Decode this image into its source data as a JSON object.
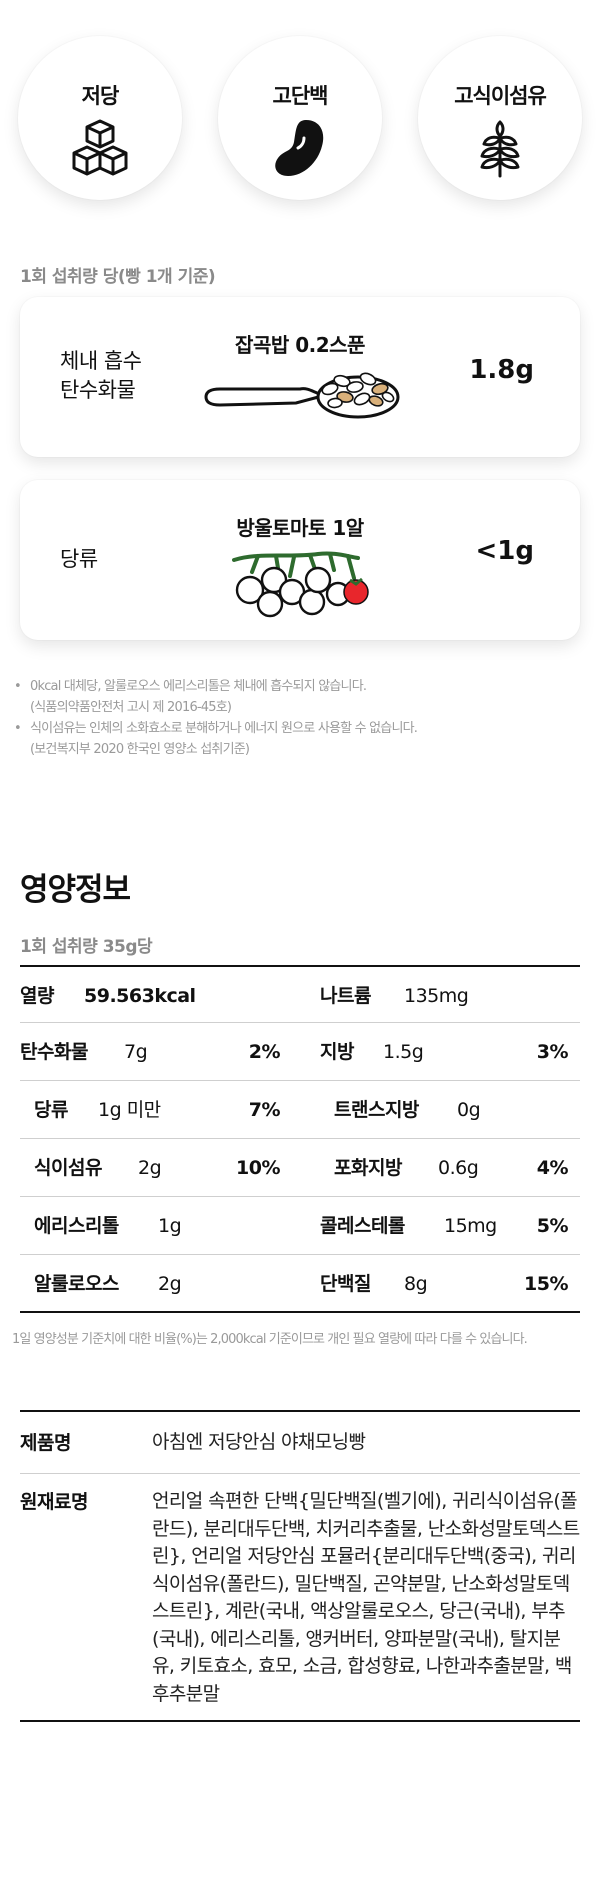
{
  "badges": [
    {
      "label": "저당",
      "icon": "sugar-cubes-icon"
    },
    {
      "label": "고단백",
      "icon": "bean-icon"
    },
    {
      "label": "고식이섬유",
      "icon": "wheat-icon"
    }
  ],
  "intake": {
    "caption": "1회 섭취량 당(빵 1개 기준)",
    "cards": [
      {
        "label_line1": "체내 흡수",
        "label_line2": "탄수화물",
        "title": "잡곡밥 0.2스푼",
        "value": "1.8g",
        "illustration": "spoon-icon"
      },
      {
        "label_line1": "당류",
        "title": "방울토마토 1알",
        "value": "<1g",
        "illustration": "tomato-icon"
      }
    ]
  },
  "notes": [
    {
      "line1": "0kcal 대체당, 알룰로오스 에리스리톨은 체내에 흡수되지 않습니다.",
      "line2": "(식품의약품안전처 고시 제 2016-45호)"
    },
    {
      "line1": "식이섬유는 인체의 소화효소로 분해하거나 에너지 원으로 사용할 수 없습니다.",
      "line2": "(보건복지부 2020 한국인 영양소 섭취기준)"
    }
  ],
  "nutrition": {
    "title": "영양정보",
    "serving": "1회 섭취량 35g당",
    "energy": {
      "label": "열량",
      "value": "59.563kcal"
    },
    "sodium": {
      "label": "나트륨",
      "value": "135mg"
    },
    "carbs": {
      "label": "탄수화물",
      "value": "7g",
      "pct": "2%"
    },
    "fat": {
      "label": "지방",
      "value": "1.5g",
      "pct": "3%"
    },
    "sugar": {
      "label": "당류",
      "value": "1g 미만",
      "pct": "7%"
    },
    "trans_fat": {
      "label": "트랜스지방",
      "value": "0g"
    },
    "fiber": {
      "label": "식이섬유",
      "value": "2g",
      "pct": "10%"
    },
    "sat_fat": {
      "label": "포화지방",
      "value": "0.6g",
      "pct": "4%"
    },
    "erythritol": {
      "label": "에리스리톨",
      "value": "1g"
    },
    "cholesterol": {
      "label": "콜레스테롤",
      "value": "15mg",
      "pct": "5%"
    },
    "allulose": {
      "label": "알룰로오스",
      "value": "2g"
    },
    "protein": {
      "label": "단백질",
      "value": "8g",
      "pct": "15%"
    },
    "footnote": "1일 영양성분 기준치에 대한 비율(%)는 2,000kcal 기준이므로 개인 필요 열량에 따라 다를 수 있습니다."
  },
  "product": {
    "name_label": "제품명",
    "name_value": "아침엔 저당안심 야채모닝빵",
    "ingredients_label": "원재료명",
    "ingredients_value": "언리얼 속편한 단백{밀단백질(벨기에), 귀리식이섬유(폴란드), 분리대두단백, 치커리추출물, 난소화성말토덱스트린}, 언리얼 저당안심 포뮬러{분리대두단백(중국), 귀리식이섬유(폴란드), 밀단백질, 곤약분말, 난소화성말토덱스트린}, 계란(국내, 액상알룰로오스, 당근(국내), 부추(국내), 에리스리톨, 앵커버터, 양파분말(국내), 탈지분유, 키토효소, 효모, 소금, 합성향료, 나한과추출분말, 백후추분말"
  },
  "colors": {
    "tomato_red": "#e8262c",
    "vine_green": "#2e6b2e",
    "caption_gray": "#8a8a8a"
  }
}
